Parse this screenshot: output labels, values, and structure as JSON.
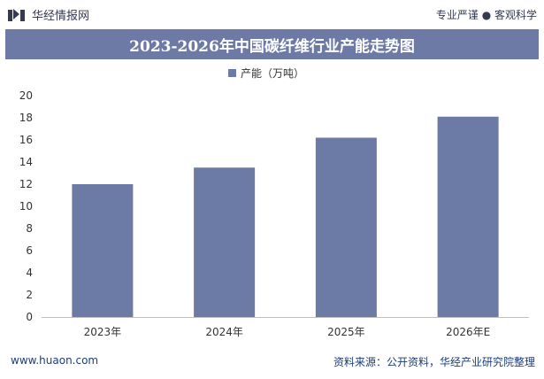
{
  "header": {
    "brand": "华经情报网",
    "tagline": "专业严谨 ● 客观科学"
  },
  "colors": {
    "accent": "#6e7aa6",
    "bar": "#6c7ba6",
    "footer_text": "#1a3d7a"
  },
  "chart_data": {
    "type": "bar",
    "title": "2023-2026年中国碳纤维行业产能走势图",
    "categories": [
      "2023年",
      "2024年",
      "2025年",
      "2026年E"
    ],
    "series": [
      {
        "name": "产能（万吨）",
        "values": [
          12.0,
          13.5,
          16.2,
          18.1
        ]
      }
    ],
    "ylim": [
      0,
      20
    ],
    "yticks": [
      "0",
      "2",
      "4",
      "6",
      "8",
      "10",
      "12",
      "14",
      "16",
      "18",
      "20"
    ],
    "xlabel": "",
    "ylabel": "",
    "grid": false,
    "legend": "top-center"
  },
  "footer": {
    "website": "www.huaon.com",
    "source": "资料来源：公开资料，华经产业研究院整理"
  }
}
